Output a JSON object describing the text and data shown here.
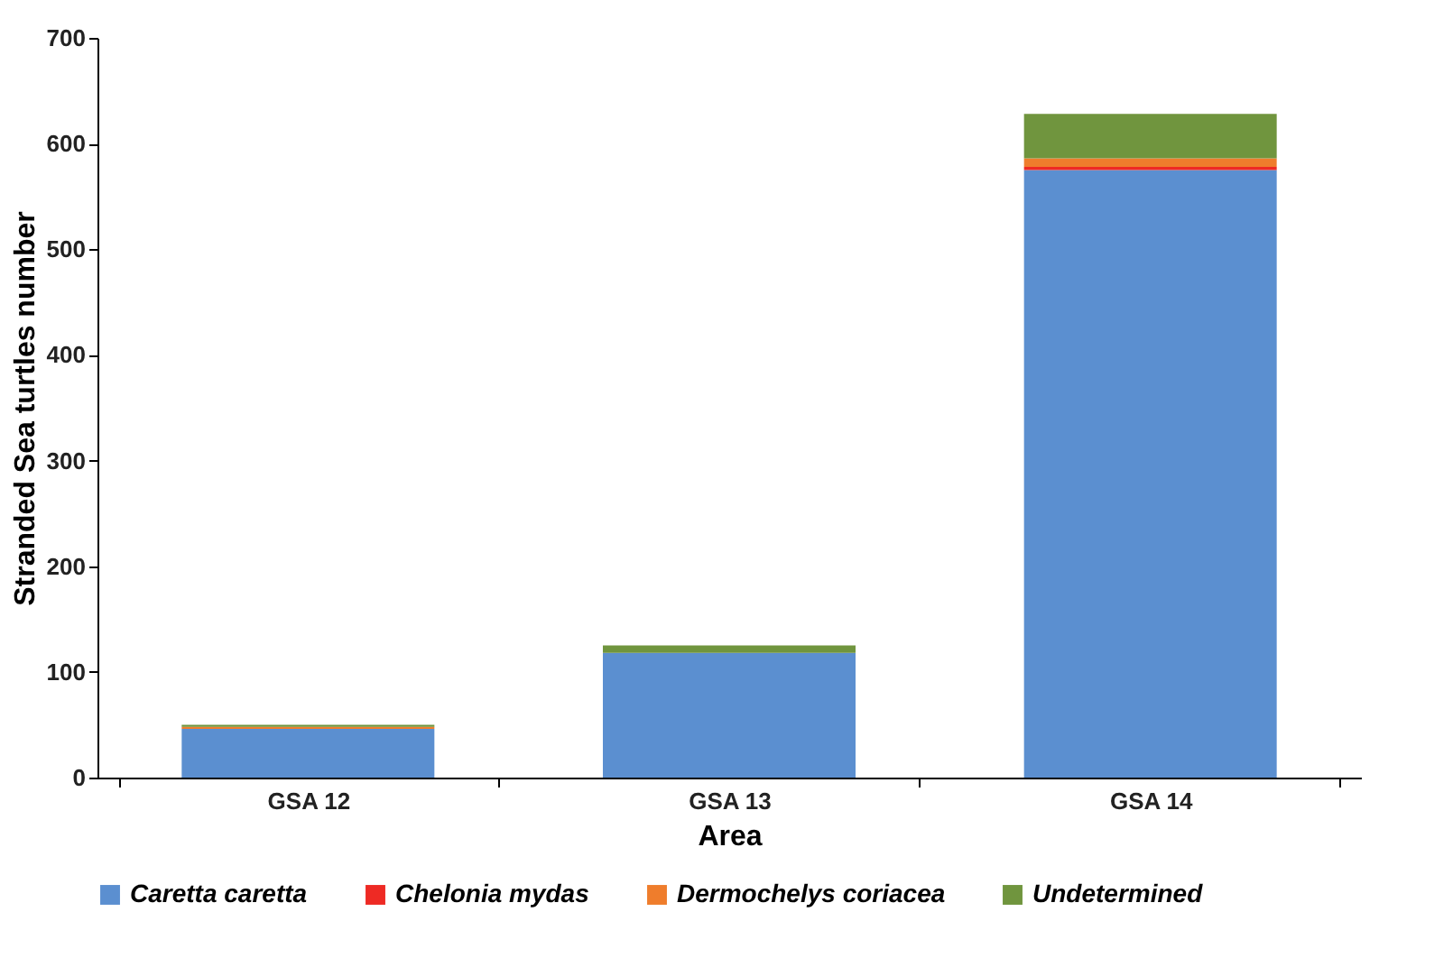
{
  "chart_data": {
    "type": "bar",
    "stacked": true,
    "xlabel": "Area",
    "ylabel": "Stranded Sea turtles number",
    "categories": [
      "GSA 12",
      "GSA 13",
      "GSA 14"
    ],
    "series": [
      {
        "name": "Caretta caretta",
        "color": "#5b8fd0",
        "values": [
          46,
          118,
          575
        ]
      },
      {
        "name": "Chelonia mydas",
        "color": "#ee2a24",
        "values": [
          0,
          0,
          3
        ]
      },
      {
        "name": "Dermochelys coriacea",
        "color": "#ef7d2c",
        "values": [
          2,
          0,
          8
        ]
      },
      {
        "name": "Undetermined",
        "color": "#70953e",
        "values": [
          2,
          7,
          42
        ]
      }
    ],
    "ylim": [
      0,
      700
    ],
    "yticks": [
      0,
      100,
      200,
      300,
      400,
      500,
      600,
      700
    ],
    "legend": "bottom",
    "grid": false
  }
}
